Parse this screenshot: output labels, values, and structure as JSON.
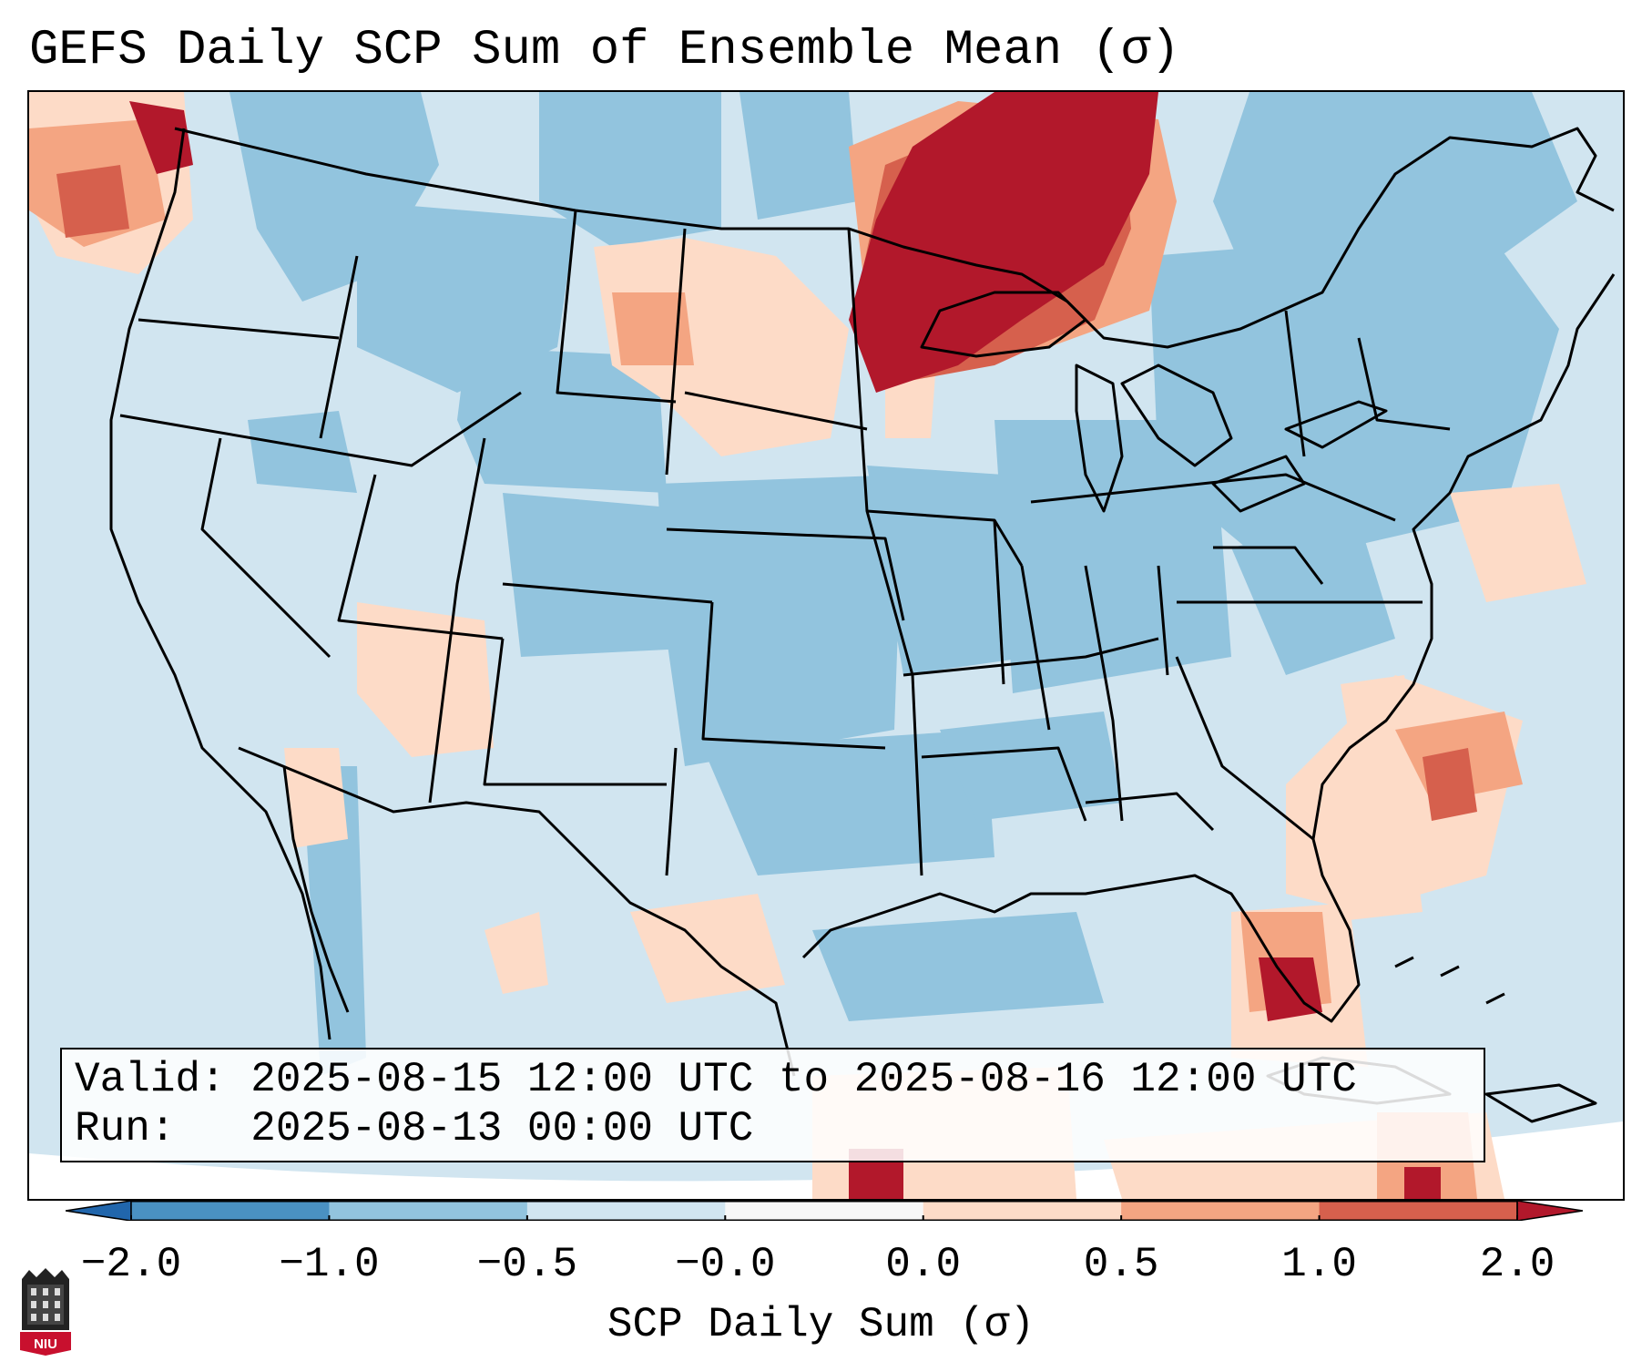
{
  "title": "GEFS Daily SCP Sum of Ensemble Mean (σ)",
  "info": {
    "valid_label": "Valid:",
    "valid_value": "2025-08-15 12:00 UTC to 2025-08-16 12:00 UTC",
    "run_label": "Run:",
    "run_value": "2025-08-13 00:00 UTC"
  },
  "colorbar": {
    "label": "SCP Daily Sum (σ)",
    "ticks": [
      "−2.0",
      "−1.0",
      "−0.5",
      "−0.0",
      "0.0",
      "0.5",
      "1.0",
      "2.0"
    ],
    "bins": [
      {
        "range": "-2.0 to -1.0",
        "color": "#4a91c2"
      },
      {
        "range": "-1.0 to -0.5",
        "color": "#92c4de"
      },
      {
        "range": "-0.5 to -0.0",
        "color": "#d1e5f0"
      },
      {
        "range": "-0.0 to 0.0",
        "color": "#f7f7f7"
      },
      {
        "range": "0.0 to 0.5",
        "color": "#fddbc7"
      },
      {
        "range": "0.5 to 1.0",
        "color": "#f4a582"
      },
      {
        "range": "1.0 to 2.0",
        "color": "#d6604d"
      }
    ],
    "under_color": "#2166ac",
    "over_color": "#b2182b"
  },
  "map": {
    "region": "CONUS",
    "background_color": "#d1e5f0",
    "borders_color": "#000000",
    "high_anomaly_regions": [
      "Upper Midwest / Lake Superior",
      "Northern Ontario",
      "Pacific Northwest coast",
      "South Florida",
      "Western Caribbean"
    ]
  },
  "logo": {
    "text": "NIU",
    "color": "#c8102e"
  }
}
